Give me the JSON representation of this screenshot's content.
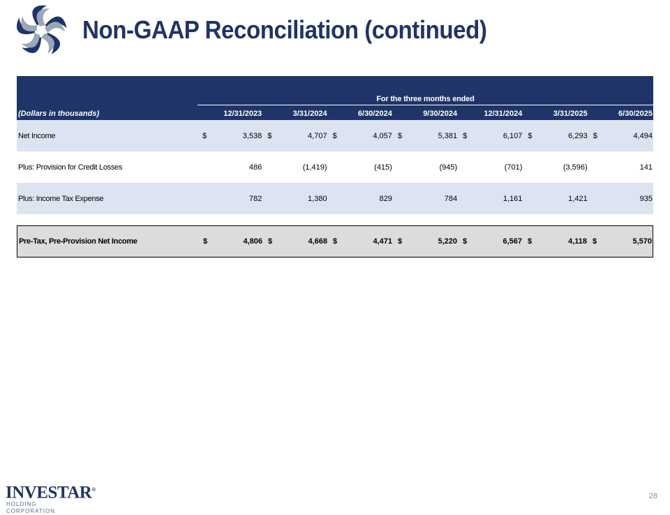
{
  "slide": {
    "title": "Non-GAAP Reconciliation (continued)",
    "page_number": "28"
  },
  "brand": {
    "name": "INVESTAR",
    "registered_mark": "®",
    "subtitle": "HOLDING CORPORATION",
    "navy": "#1f3466",
    "steel": "#9aa7b8",
    "logo_icon": "pinwheel-star-logo-icon"
  },
  "table": {
    "period_header": "For the three months ended",
    "units_label": "(Dollars in thousands)",
    "dates": [
      "12/31/2023",
      "3/31/2024",
      "6/30/2024",
      "9/30/2024",
      "12/31/2024",
      "3/31/2025",
      "6/30/2025"
    ],
    "rows": [
      {
        "label": "Net Income",
        "currency": [
          "$",
          "$",
          "$",
          "$",
          "$",
          "$",
          "$"
        ],
        "values": [
          "3,538",
          "4,707",
          "4,057",
          "5,381",
          "6,107",
          "6,293",
          "4,494"
        ]
      },
      {
        "label": "Plus: Provision for Credit Losses",
        "currency": [
          "",
          "",
          "",
          "",
          "",
          "",
          ""
        ],
        "values": [
          "486",
          "(1,419)",
          "(415)",
          "(945)",
          "(701)",
          "(3,596)",
          "141"
        ]
      },
      {
        "label": "Plus: Income Tax Expense",
        "currency": [
          "",
          "",
          "",
          "",
          "",
          "",
          ""
        ],
        "values": [
          "782",
          "1,380",
          "829",
          "784",
          "1,161",
          "1,421",
          "935"
        ]
      }
    ],
    "total": {
      "label": "Pre-Tax, Pre-Provision Net Income",
      "currency": [
        "$",
        "$",
        "$",
        "$",
        "$",
        "$",
        "$"
      ],
      "values": [
        "4,806",
        "4,668",
        "4,471",
        "5,220",
        "6,567",
        "4,118",
        "5,570"
      ]
    },
    "colors": {
      "header_bg": "#1f3468",
      "shade_row": "#dce3f1",
      "total_bg": "#dcdcdc"
    }
  }
}
